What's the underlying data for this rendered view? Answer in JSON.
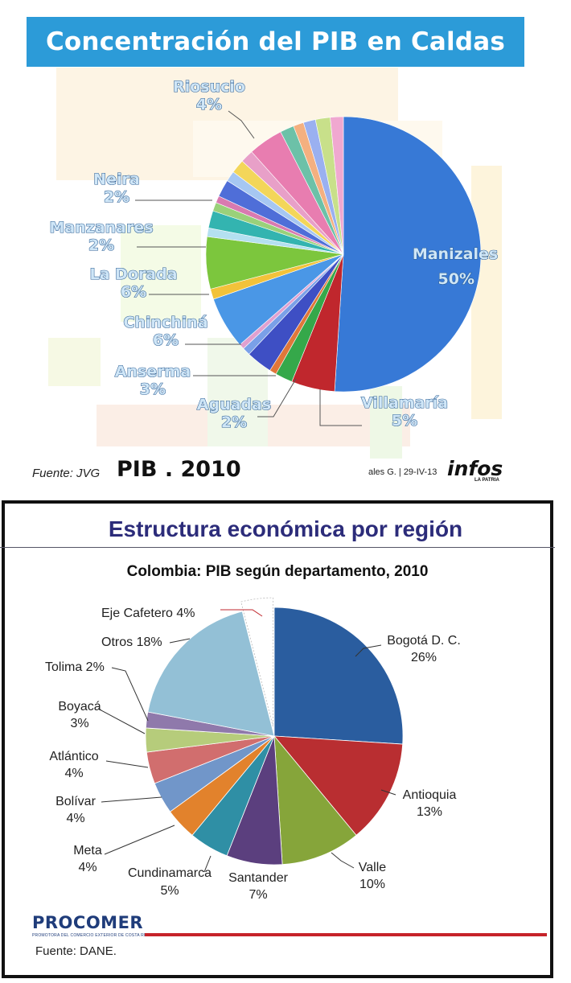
{
  "top_chart": {
    "title": "Concentración del PIB en Caldas",
    "source_left": "Fuente: JVG",
    "overlay_label": "PIB . 2010",
    "credit": "ales G. | 29-IV-13",
    "logo_text": "infos",
    "logo_subtext": "LA PATRIA"
  },
  "bottom_chart": {
    "title": "Estructura económica por región",
    "subtitle": "Colombia: PIB según departamento, 2010",
    "logo": "PROCOMER",
    "logo_tagline": "PROMOTORA DEL COMERCIO EXTERIOR DE COSTA RICA",
    "source": "Fuente: DANE."
  },
  "chart_data": [
    {
      "type": "pie",
      "title": "Concentración del PIB en Caldas",
      "categories": [
        "Manizales",
        "Villamaría",
        "Aguadas",
        "Anserma",
        "Chinchiná",
        "La Dorada",
        "Manzanares",
        "Neira",
        "Riosucio"
      ],
      "values": [
        50,
        5,
        2,
        3,
        6,
        6,
        2,
        2,
        4
      ],
      "value_labels": [
        "50%",
        "5%",
        "2%",
        "3%",
        "6%",
        "6%",
        "2%",
        "2%",
        "4%"
      ],
      "unlabeled_slices": 20,
      "colors": {
        "manizales": "#3779d6",
        "villamaria": "#c0272d",
        "chinchina": "#4a97e6",
        "la_dorada": "#7cc63d",
        "riosucio": "#e87db0",
        "neira": "#f08a30"
      }
    },
    {
      "type": "pie",
      "title": "Colombia: PIB según departamento, 2010",
      "categories": [
        "Bogotá D. C.",
        "Antioquia",
        "Valle",
        "Santander",
        "Cundinamarca",
        "Meta",
        "Bolívar",
        "Atlántico",
        "Boyacá",
        "Tolima",
        "Otros",
        "Eje Cafetero"
      ],
      "values": [
        26,
        13,
        10,
        7,
        5,
        4,
        4,
        4,
        3,
        2,
        18,
        4
      ],
      "value_labels": [
        "26%",
        "13%",
        "10%",
        "7%",
        "5%",
        "4%",
        "4%",
        "4%",
        "3%",
        "2%",
        "18%",
        "4%"
      ],
      "highlight": "Eje Cafetero",
      "colors": {
        "bogota": "#2a5d9f",
        "antioquia": "#b92e31",
        "valle": "#86a53a",
        "santander": "#5b3f7e",
        "cundinamarca": "#2f8fa5",
        "meta": "#e2822c",
        "bolivar": "#7196c9",
        "atlantico": "#d16e6e",
        "boyaca": "#b6cc7b",
        "tolima": "#8f79ab",
        "otros": "#93c0d6",
        "highlight_label": "#c0272d"
      }
    }
  ]
}
